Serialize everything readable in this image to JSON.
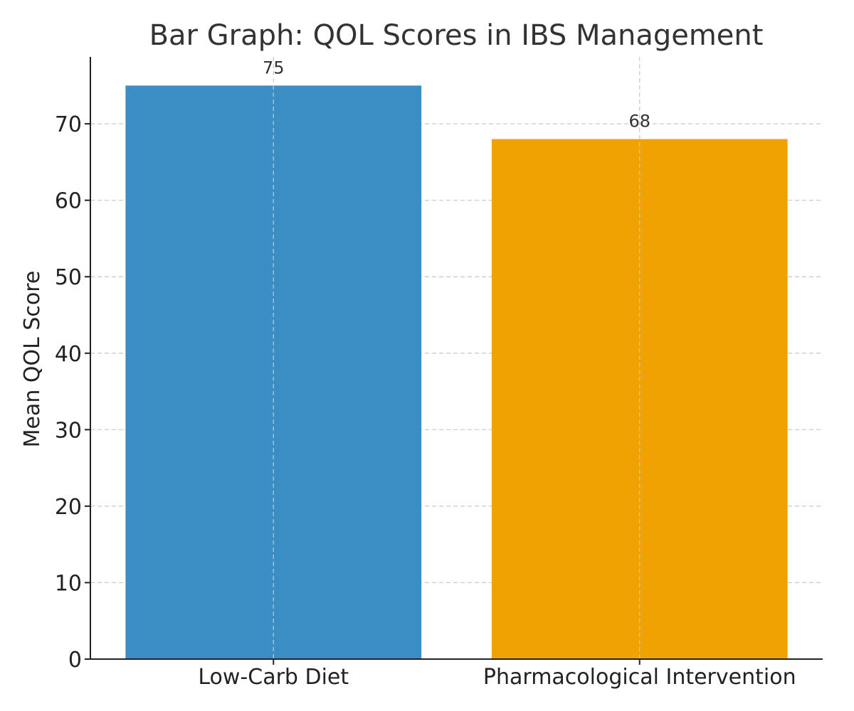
{
  "chart_data": {
    "type": "bar",
    "title": "Bar Graph: QOL Scores in IBS Management",
    "xlabel": "",
    "ylabel": "Mean QOL Score",
    "categories": [
      "Low-Carb Diet",
      "Pharmacological Intervention"
    ],
    "values": [
      75,
      68
    ],
    "data_labels": [
      "75",
      "68"
    ],
    "colors": [
      "#3b8ec4",
      "#f0a202"
    ],
    "ylim": [
      0,
      78.75
    ],
    "yticks": [
      0,
      10,
      20,
      30,
      40,
      50,
      60,
      70
    ],
    "ytick_labels": [
      "0",
      "10",
      "20",
      "30",
      "40",
      "50",
      "60",
      "70"
    ],
    "grid": true,
    "legend": "none"
  }
}
